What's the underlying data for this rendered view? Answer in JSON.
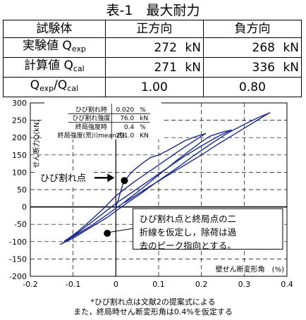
{
  "table": {
    "title": "表-1　最大耐力",
    "headers": [
      "試験体",
      "正方向",
      "負方向"
    ],
    "rows": [
      {
        "label": "実験値 Q",
        "sub": "exp",
        "pos": "272",
        "pos_unit": "kN",
        "neg": "268",
        "neg_unit": "kN"
      },
      {
        "label": "計算値 Q",
        "sub": "cal",
        "pos": "271",
        "pos_unit": "kN",
        "neg": "336",
        "neg_unit": "kN"
      }
    ],
    "ratio": {
      "q1": "Q",
      "sub1": "exp",
      "slash": "/Q",
      "sub2": "cal",
      "pos": "1.00",
      "neg": "0.80"
    }
  },
  "chart_data": {
    "type": "line",
    "xlabel": "壁せん断変形角　(%)",
    "ylabel": "せん断力Q(kN)",
    "xlim": [
      -0.2,
      0.4
    ],
    "ylim": [
      -200,
      300
    ],
    "xticks": [
      "-0.2",
      "-0.1",
      "0",
      "0.1",
      "0.2",
      "0.3",
      "0.4"
    ],
    "yticks": [
      "300",
      "250",
      "200",
      "150",
      "100",
      "50",
      "0",
      "-50",
      "-100",
      "-150",
      "-200"
    ],
    "grid": true,
    "colors": {
      "curve": "#1c2a8c",
      "axis": "#000000"
    },
    "legend_table": [
      {
        "label": "ひび割れ時",
        "value": "0.020",
        "unit": "%"
      },
      {
        "label": "ひび割れ強度",
        "value": "76.0",
        "unit": "kN"
      },
      {
        "label": "終局強度時",
        "value": "0.4",
        "unit": "%"
      },
      {
        "label": "終局強度(荒川mean式)",
        "value": "291.0",
        "unit": "KN"
      }
    ],
    "crack_point": {
      "x": 0.02,
      "y": 76,
      "label": "ひび割れ点"
    },
    "neg_crack_point": {
      "x": -0.02,
      "y": -76
    },
    "annotation": [
      "ひび割れ点と終局点の二",
      "折線を仮定し，除荷は過",
      "去のピーク指向とする。"
    ],
    "hysteresis": [
      [
        0,
        0
      ],
      [
        0.006,
        22
      ],
      [
        0.012,
        48
      ],
      [
        0.018,
        72
      ],
      [
        0.02,
        76
      ],
      [
        0.04,
        104
      ],
      [
        0.06,
        124
      ],
      [
        0.08,
        142
      ],
      [
        0.1,
        150
      ],
      [
        0.12,
        162
      ],
      [
        0.14,
        176
      ],
      [
        0.16,
        190
      ],
      [
        0.18,
        200
      ],
      [
        0.2,
        208
      ],
      [
        0.21,
        212
      ],
      [
        0.19,
        196
      ],
      [
        0.16,
        172
      ],
      [
        0.12,
        138
      ],
      [
        0.08,
        104
      ],
      [
        0.04,
        70
      ],
      [
        0.0,
        32
      ],
      [
        -0.03,
        -6
      ],
      [
        -0.06,
        -40
      ],
      [
        -0.09,
        -72
      ],
      [
        -0.11,
        -90
      ],
      [
        -0.12,
        -98
      ],
      [
        -0.1,
        -86
      ],
      [
        -0.06,
        -56
      ],
      [
        -0.02,
        -22
      ],
      [
        0.02,
        14
      ],
      [
        0.06,
        52
      ],
      [
        0.1,
        92
      ],
      [
        0.14,
        132
      ],
      [
        0.17,
        160
      ],
      [
        0.2,
        188
      ],
      [
        0.22,
        204
      ],
      [
        0.25,
        216
      ],
      [
        0.27,
        222
      ],
      [
        0.24,
        204
      ],
      [
        0.2,
        176
      ],
      [
        0.16,
        146
      ],
      [
        0.12,
        112
      ],
      [
        0.08,
        78
      ],
      [
        0.04,
        44
      ],
      [
        0.0,
        10
      ],
      [
        -0.04,
        -28
      ],
      [
        -0.08,
        -66
      ],
      [
        -0.11,
        -94
      ],
      [
        -0.13,
        -108
      ],
      [
        -0.1,
        -90
      ],
      [
        -0.06,
        -60
      ],
      [
        -0.02,
        -30
      ],
      [
        0.02,
        6
      ],
      [
        0.06,
        40
      ],
      [
        0.1,
        76
      ],
      [
        0.14,
        110
      ],
      [
        0.18,
        146
      ],
      [
        0.22,
        180
      ],
      [
        0.26,
        212
      ],
      [
        0.3,
        238
      ],
      [
        0.33,
        256
      ],
      [
        0.36,
        272
      ],
      [
        0.32,
        242
      ],
      [
        0.28,
        212
      ],
      [
        0.24,
        182
      ],
      [
        0.2,
        150
      ],
      [
        0.16,
        120
      ],
      [
        0.12,
        90
      ],
      [
        0.08,
        60
      ],
      [
        0.05,
        36
      ],
      [
        0.02,
        12
      ]
    ]
  },
  "footnote": [
    "*ひび割れ点は文献2の提案式による",
    "また，終局時せん断変形角は0.4%を仮定する"
  ]
}
